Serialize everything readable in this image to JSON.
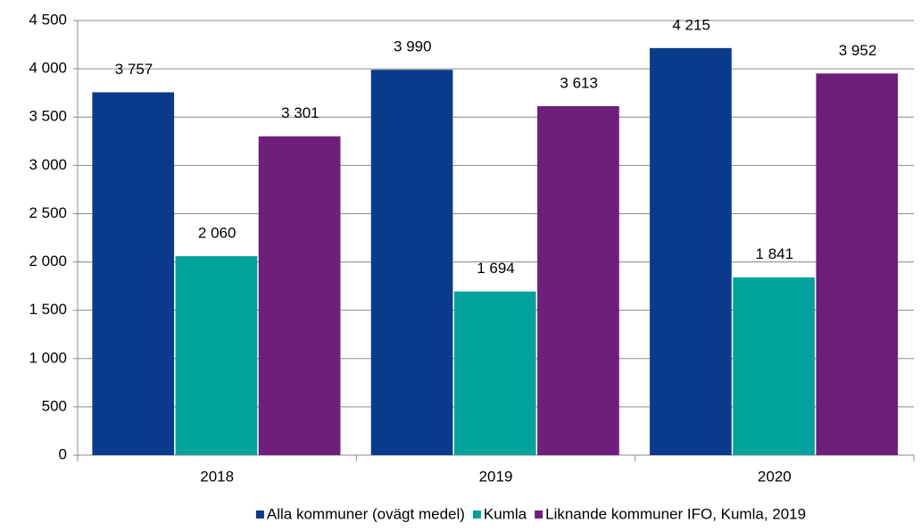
{
  "chart_data": {
    "type": "bar",
    "categories": [
      "2018",
      "2019",
      "2020"
    ],
    "series": [
      {
        "name": "Alla kommuner (ovägt medel)",
        "color": "#0a3a8c",
        "values": [
          3757,
          3990,
          4215
        ],
        "value_labels": [
          "3 757",
          "3 990",
          "4 215"
        ]
      },
      {
        "name": "Kumla",
        "color": "#00a39c",
        "values": [
          2060,
          1694,
          1841
        ],
        "value_labels": [
          "2 060",
          "1 694",
          "1 841"
        ]
      },
      {
        "name": "Liknande kommuner IFO, Kumla, 2019",
        "color": "#6e1f79",
        "values": [
          3301,
          3613,
          3952
        ],
        "value_labels": [
          "3 301",
          "3 613",
          "3 952"
        ]
      }
    ],
    "ylim": [
      0,
      4500
    ],
    "yticks": [
      0,
      500,
      {
        "value": 1000,
        "label": "1 000"
      },
      {
        "value": 1500,
        "label": "1 500"
      },
      {
        "value": 2000,
        "label": "2 000"
      },
      {
        "value": 2500,
        "label": "2 500"
      },
      {
        "value": 3000,
        "label": "3 000"
      },
      {
        "value": 3500,
        "label": "3 500"
      },
      {
        "value": 4000,
        "label": "4 000"
      },
      {
        "value": 4500,
        "label": "4 500"
      }
    ],
    "grid": true,
    "legend": "bottom"
  }
}
